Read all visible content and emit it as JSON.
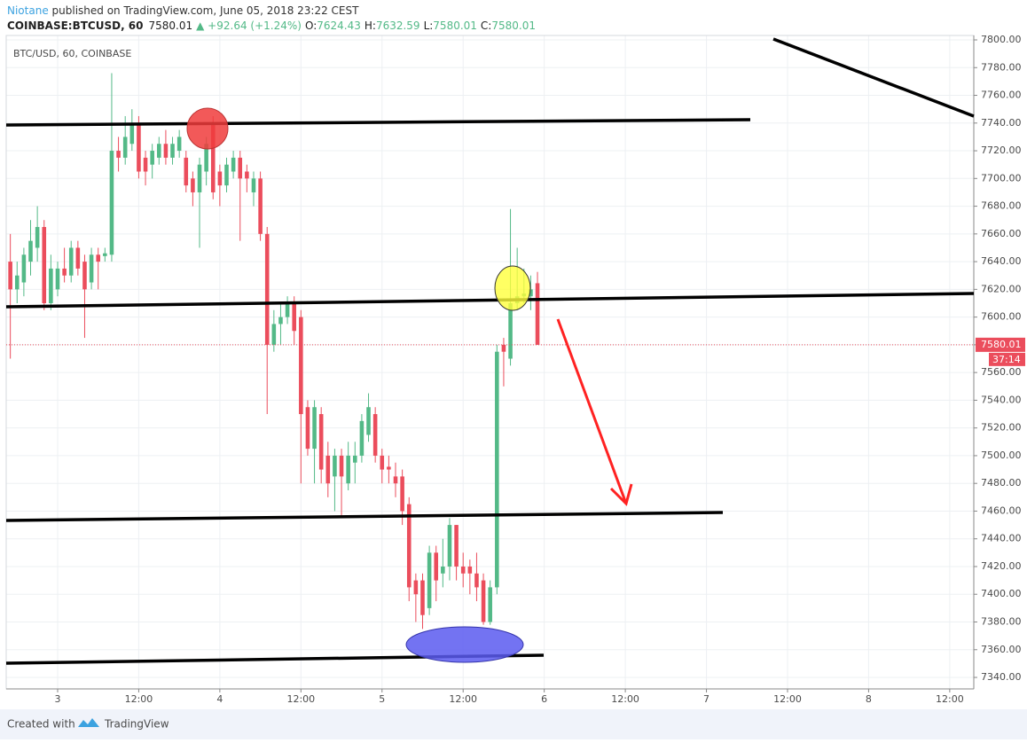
{
  "header": {
    "publisher": "Niotane",
    "published": "published on TradingView.com, June 05, 2018 23:22 CEST",
    "symbol": "COINBASE:BTCUSD, 60",
    "change": "▲ +92.64 (+1.24%)",
    "ohlc_labels": [
      "O:",
      "H:",
      "L:",
      "C:"
    ]
  },
  "chart_data": {
    "type": "candlestick",
    "watermark": "BTC/USD, 60, COINBASE",
    "x": [
      -7,
      -6,
      -5,
      -4,
      -3,
      -2,
      -1,
      0,
      1,
      2,
      3,
      4,
      5,
      6,
      7,
      8,
      9,
      10,
      11,
      12,
      13,
      14,
      15,
      16,
      17,
      18,
      19,
      20,
      21,
      22,
      23,
      24,
      25,
      26,
      27,
      28,
      29,
      30,
      31,
      32,
      33,
      34,
      35,
      36,
      37,
      38,
      39,
      40,
      41,
      42,
      43,
      44,
      45,
      46,
      47,
      48,
      49,
      50,
      51,
      52,
      53,
      54,
      55,
      56,
      57,
      58,
      59,
      60,
      61,
      62,
      63,
      64,
      65,
      66,
      67,
      68,
      69,
      70,
      71
    ],
    "open": [
      7640,
      7620,
      7625,
      7640,
      7650,
      7665,
      7610,
      7620,
      7635,
      7630,
      7650,
      7640,
      7625,
      7645,
      7644,
      7645,
      7720,
      7715,
      7725,
      7740,
      7715,
      7710,
      7715,
      7725,
      7715,
      7720,
      7715,
      7700,
      7690,
      7705,
      7740,
      7705,
      7695,
      7705,
      7715,
      7705,
      7690,
      7700,
      7660,
      7580,
      7595,
      7600,
      7610,
      7600,
      7535,
      7505,
      7530,
      7500,
      7485,
      7500,
      7480,
      7495,
      7500,
      7515,
      7530,
      7500,
      7492,
      7485,
      7485,
      7465,
      7410,
      7410,
      7390,
      7430,
      7415,
      7420,
      7450,
      7420,
      7420,
      7415,
      7410,
      7380,
      7405,
      7580,
      7570,
      7610,
      7615,
      7615,
      7624.43
    ],
    "high": [
      7660,
      7640,
      7650,
      7670,
      7680,
      7670,
      7645,
      7640,
      7650,
      7655,
      7655,
      7645,
      7650,
      7650,
      7650,
      7776,
      7730,
      7745,
      7750,
      7745,
      7720,
      7725,
      7730,
      7735,
      7730,
      7735,
      7720,
      7705,
      7715,
      7730,
      7745,
      7710,
      7715,
      7720,
      7720,
      7710,
      7705,
      7705,
      7665,
      7605,
      7610,
      7615,
      7615,
      7605,
      7540,
      7540,
      7535,
      7510,
      7505,
      7505,
      7510,
      7510,
      7530,
      7545,
      7535,
      7505,
      7500,
      7495,
      7490,
      7470,
      7415,
      7415,
      7435,
      7435,
      7440,
      7455,
      7450,
      7430,
      7425,
      7430,
      7415,
      7410,
      7580,
      7585,
      7678,
      7650,
      7635,
      7630,
      7632.59
    ],
    "low": [
      7570,
      7610,
      7615,
      7630,
      7640,
      7605,
      7605,
      7615,
      7625,
      7625,
      7630,
      7585,
      7620,
      7620,
      7640,
      7640,
      7705,
      7710,
      7720,
      7700,
      7695,
      7700,
      7710,
      7710,
      7710,
      7715,
      7690,
      7680,
      7650,
      7695,
      7685,
      7680,
      7690,
      7700,
      7655,
      7690,
      7680,
      7655,
      7530,
      7575,
      7580,
      7595,
      7580,
      7480,
      7500,
      7480,
      7480,
      7470,
      7460,
      7455,
      7475,
      7480,
      7495,
      7510,
      7495,
      7480,
      7480,
      7470,
      7450,
      7395,
      7380,
      7375,
      7385,
      7395,
      7405,
      7410,
      7410,
      7405,
      7400,
      7395,
      7378,
      7378,
      7400,
      7550,
      7565,
      7605,
      7610,
      7605,
      7580.01
    ],
    "close": [
      7620,
      7630,
      7645,
      7655,
      7665,
      7610,
      7635,
      7635,
      7630,
      7650,
      7635,
      7620,
      7645,
      7640,
      7646,
      7720,
      7715,
      7730,
      7740,
      7705,
      7705,
      7720,
      7725,
      7715,
      7725,
      7730,
      7695,
      7690,
      7710,
      7725,
      7690,
      7695,
      7710,
      7715,
      7700,
      7700,
      7700,
      7660,
      7580,
      7595,
      7600,
      7610,
      7590,
      7530,
      7505,
      7535,
      7490,
      7480,
      7500,
      7485,
      7500,
      7500,
      7525,
      7535,
      7500,
      7490,
      7490,
      7480,
      7460,
      7405,
      7400,
      7385,
      7430,
      7410,
      7420,
      7450,
      7420,
      7415,
      7415,
      7405,
      7380,
      7405,
      7575,
      7575,
      7610,
      7615,
      7617,
      7620,
      7580.01
    ],
    "up_color": "#53b987",
    "down_color": "#eb4d5c",
    "ylim": [
      7331.7,
      7803.2
    ],
    "yticks": [
      {
        "value": 7340,
        "label": "7340.00"
      },
      {
        "value": 7360,
        "label": "7360.00"
      },
      {
        "value": 7380,
        "label": "7380.00"
      },
      {
        "value": 7400,
        "label": "7400.00"
      },
      {
        "value": 7420,
        "label": "7420.00"
      },
      {
        "value": 7440,
        "label": "7440.00"
      },
      {
        "value": 7460,
        "label": "7460.00"
      },
      {
        "value": 7480,
        "label": "7480.00"
      },
      {
        "value": 7500,
        "label": "7500.00"
      },
      {
        "value": 7520,
        "label": "7520.00"
      },
      {
        "value": 7540,
        "label": "7540.00"
      },
      {
        "value": 7560,
        "label": "7560.00"
      },
      {
        "value": 7580,
        "label": "7580.00"
      },
      {
        "value": 7600,
        "label": "7600.00"
      },
      {
        "value": 7620,
        "label": "7620.00"
      },
      {
        "value": 7640,
        "label": "7640.00"
      },
      {
        "value": 7660,
        "label": "7660.00"
      },
      {
        "value": 7680,
        "label": "7680.00"
      },
      {
        "value": 7700,
        "label": "7700.00"
      },
      {
        "value": 7720,
        "label": "7720.00"
      },
      {
        "value": 7740,
        "label": "7740.00"
      },
      {
        "value": 7760,
        "label": "7760.00"
      },
      {
        "value": 7780,
        "label": "7780.00"
      },
      {
        "value": 7800,
        "label": "7800.00"
      }
    ],
    "xlim": [
      -7.61,
      135.56
    ],
    "xticks": [
      {
        "value": 0,
        "label": "3"
      },
      {
        "value": 12,
        "label": "12:00"
      },
      {
        "value": 24,
        "label": "4"
      },
      {
        "value": 36,
        "label": "12:00"
      },
      {
        "value": 48,
        "label": "5"
      },
      {
        "value": 60,
        "label": "12:00"
      },
      {
        "value": 72,
        "label": "6"
      },
      {
        "value": 84,
        "label": "12:00"
      },
      {
        "value": 96,
        "label": "7"
      },
      {
        "value": 108,
        "label": "12:00"
      },
      {
        "value": 120,
        "label": "8"
      },
      {
        "value": 132,
        "label": "12:00"
      }
    ],
    "grid": true,
    "countdown": "37:14"
  },
  "footer": {
    "created": "Created with",
    "brand": "TradingView"
  }
}
